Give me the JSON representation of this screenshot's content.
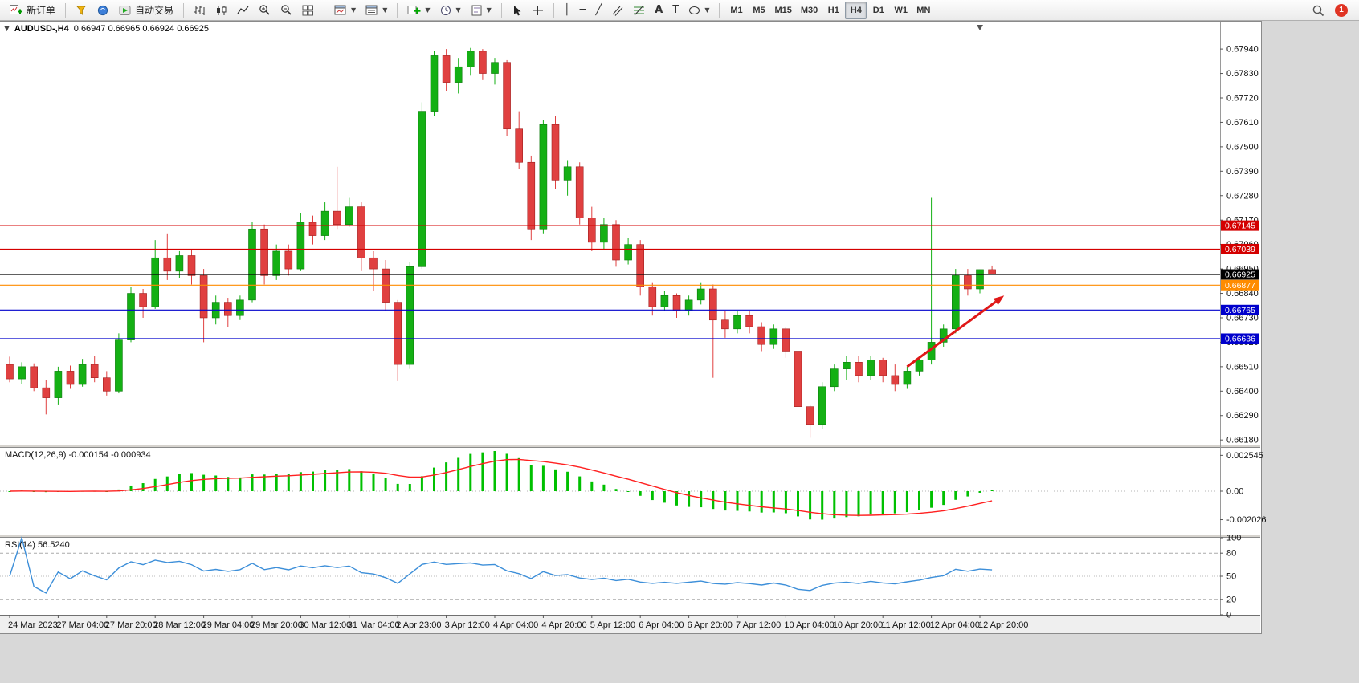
{
  "toolbar": {
    "new_order": {
      "label": "新订单"
    },
    "autotrading": {
      "label": "自动交易"
    },
    "timeframes": {
      "items": [
        "M1",
        "M5",
        "M15",
        "M30",
        "H1",
        "H4",
        "D1",
        "W1",
        "MN"
      ],
      "active": "H4"
    },
    "notification_count": "1"
  },
  "chart_data": {
    "type": "candlestick",
    "symbol": "AUDUSD-,H4",
    "ohlc_display": "0.66947 0.66965 0.66924 0.66925",
    "price_range": {
      "min": 0.66159,
      "max": 0.68056
    },
    "price_ticks": [
      "0.67940",
      "0.67830",
      "0.67720",
      "0.67610",
      "0.67500",
      "0.67390",
      "0.67280",
      "0.67170",
      "0.67060",
      "0.66950",
      "0.66840",
      "0.66730",
      "0.66620",
      "0.66510",
      "0.66400",
      "0.66290",
      "0.66180"
    ],
    "hlines": [
      {
        "price": 0.67145,
        "color": "#d40000",
        "label": "0.67145"
      },
      {
        "price": 0.67039,
        "color": "#d40000",
        "label": "0.67039"
      },
      {
        "price": 0.66925,
        "color": "#000000",
        "label": "0.66925"
      },
      {
        "price": 0.66877,
        "color": "#ff8c00",
        "label": "0.66877"
      },
      {
        "price": 0.66765,
        "color": "#0000cc",
        "label": "0.66765"
      },
      {
        "price": 0.66636,
        "color": "#0000cc",
        "label": "0.66636"
      }
    ],
    "x_labels": [
      {
        "i": 0,
        "t": "24 Mar 2023"
      },
      {
        "i": 4,
        "t": "27 Mar 04:00"
      },
      {
        "i": 8,
        "t": "27 Mar 20:00"
      },
      {
        "i": 12,
        "t": "28 Mar 12:00"
      },
      {
        "i": 16,
        "t": "29 Mar 04:00"
      },
      {
        "i": 20,
        "t": "29 Mar 20:00"
      },
      {
        "i": 24,
        "t": "30 Mar 12:00"
      },
      {
        "i": 28,
        "t": "31 Mar 04:00"
      },
      {
        "i": 32,
        "t": "2 Apr 23:00"
      },
      {
        "i": 36,
        "t": "3 Apr 12:00"
      },
      {
        "i": 40,
        "t": "4 Apr 04:00"
      },
      {
        "i": 44,
        "t": "4 Apr 20:00"
      },
      {
        "i": 48,
        "t": "5 Apr 12:00"
      },
      {
        "i": 52,
        "t": "6 Apr 04:00"
      },
      {
        "i": 56,
        "t": "6 Apr 20:00"
      },
      {
        "i": 60,
        "t": "7 Apr 12:00"
      },
      {
        "i": 64,
        "t": "10 Apr 04:00"
      },
      {
        "i": 68,
        "t": "10 Apr 20:00"
      },
      {
        "i": 72,
        "t": "11 Apr 12:00"
      },
      {
        "i": 76,
        "t": "12 Apr 04:00"
      },
      {
        "i": 80,
        "t": "12 Apr 20:00"
      }
    ],
    "candles": [
      [
        0.6652,
        0.66555,
        0.6644,
        0.66455
      ],
      [
        0.66455,
        0.6653,
        0.6643,
        0.6651
      ],
      [
        0.6651,
        0.66525,
        0.664,
        0.66415
      ],
      [
        0.66415,
        0.6645,
        0.66295,
        0.6637
      ],
      [
        0.6637,
        0.6651,
        0.6634,
        0.6649
      ],
      [
        0.6649,
        0.66515,
        0.6641,
        0.6643
      ],
      [
        0.6643,
        0.66545,
        0.6642,
        0.6652
      ],
      [
        0.6652,
        0.6656,
        0.6644,
        0.6646
      ],
      [
        0.6646,
        0.6649,
        0.6638,
        0.664
      ],
      [
        0.664,
        0.6666,
        0.6639,
        0.6663
      ],
      [
        0.6663,
        0.6687,
        0.6662,
        0.6684
      ],
      [
        0.6684,
        0.6686,
        0.6673,
        0.6678
      ],
      [
        0.6678,
        0.6708,
        0.6677,
        0.67
      ],
      [
        0.67,
        0.6711,
        0.669,
        0.6694
      ],
      [
        0.6694,
        0.6703,
        0.6691,
        0.6701
      ],
      [
        0.6701,
        0.6704,
        0.6688,
        0.6692
      ],
      [
        0.6692,
        0.6695,
        0.6662,
        0.6673
      ],
      [
        0.6673,
        0.6683,
        0.667,
        0.668
      ],
      [
        0.668,
        0.6682,
        0.6669,
        0.6674
      ],
      [
        0.6674,
        0.6683,
        0.6672,
        0.6681
      ],
      [
        0.6681,
        0.6716,
        0.668,
        0.6713
      ],
      [
        0.6713,
        0.6715,
        0.6688,
        0.6692
      ],
      [
        0.6692,
        0.6706,
        0.669,
        0.6703
      ],
      [
        0.6703,
        0.6706,
        0.6692,
        0.6695
      ],
      [
        0.6695,
        0.672,
        0.6694,
        0.6716
      ],
      [
        0.6716,
        0.6719,
        0.6706,
        0.671
      ],
      [
        0.671,
        0.6725,
        0.6708,
        0.6721
      ],
      [
        0.6721,
        0.6741,
        0.6713,
        0.6715
      ],
      [
        0.6715,
        0.6727,
        0.6714,
        0.6723
      ],
      [
        0.6723,
        0.6725,
        0.6694,
        0.67
      ],
      [
        0.67,
        0.6703,
        0.6685,
        0.6695
      ],
      [
        0.6695,
        0.6699,
        0.6676,
        0.668
      ],
      [
        0.668,
        0.6681,
        0.66445,
        0.6652
      ],
      [
        0.6652,
        0.6698,
        0.665,
        0.6696
      ],
      [
        0.6696,
        0.677,
        0.6695,
        0.6766
      ],
      [
        0.6766,
        0.6793,
        0.6764,
        0.6791
      ],
      [
        0.6791,
        0.6794,
        0.6775,
        0.6779
      ],
      [
        0.6779,
        0.679,
        0.6774,
        0.6786
      ],
      [
        0.6786,
        0.67945,
        0.6782,
        0.6793
      ],
      [
        0.6793,
        0.6794,
        0.678,
        0.6783
      ],
      [
        0.6783,
        0.679,
        0.6778,
        0.6788
      ],
      [
        0.6788,
        0.6789,
        0.6755,
        0.6758
      ],
      [
        0.6758,
        0.6766,
        0.674,
        0.6743
      ],
      [
        0.6743,
        0.6746,
        0.6708,
        0.6713
      ],
      [
        0.6713,
        0.6762,
        0.6711,
        0.676
      ],
      [
        0.676,
        0.6764,
        0.6731,
        0.6735
      ],
      [
        0.6735,
        0.6744,
        0.6728,
        0.6741
      ],
      [
        0.6741,
        0.6743,
        0.6715,
        0.6718
      ],
      [
        0.6718,
        0.6723,
        0.6703,
        0.6707
      ],
      [
        0.6707,
        0.6718,
        0.6704,
        0.6715
      ],
      [
        0.6715,
        0.6717,
        0.6696,
        0.6699
      ],
      [
        0.6699,
        0.6709,
        0.6697,
        0.6706
      ],
      [
        0.6706,
        0.6708,
        0.6683,
        0.6687
      ],
      [
        0.6687,
        0.6689,
        0.6674,
        0.6678
      ],
      [
        0.6678,
        0.6685,
        0.6676,
        0.6683
      ],
      [
        0.6683,
        0.6684,
        0.6673,
        0.6676
      ],
      [
        0.6676,
        0.6683,
        0.6674,
        0.6681
      ],
      [
        0.6681,
        0.6689,
        0.6679,
        0.6686
      ],
      [
        0.6686,
        0.6688,
        0.6646,
        0.6672
      ],
      [
        0.6672,
        0.6676,
        0.6664,
        0.6668
      ],
      [
        0.6668,
        0.6676,
        0.6666,
        0.6674
      ],
      [
        0.6674,
        0.6676,
        0.6666,
        0.6669
      ],
      [
        0.6669,
        0.6671,
        0.6658,
        0.6661
      ],
      [
        0.6661,
        0.667,
        0.6659,
        0.6668
      ],
      [
        0.6668,
        0.6669,
        0.6655,
        0.6658
      ],
      [
        0.6658,
        0.666,
        0.6628,
        0.6633
      ],
      [
        0.6633,
        0.6634,
        0.6619,
        0.6625
      ],
      [
        0.6625,
        0.6644,
        0.6623,
        0.6642
      ],
      [
        0.6642,
        0.6652,
        0.664,
        0.665
      ],
      [
        0.665,
        0.6656,
        0.6645,
        0.6653
      ],
      [
        0.6653,
        0.6656,
        0.6644,
        0.6647
      ],
      [
        0.6647,
        0.6656,
        0.6645,
        0.6654
      ],
      [
        0.6654,
        0.6655,
        0.6644,
        0.6647
      ],
      [
        0.6647,
        0.6652,
        0.664,
        0.6643
      ],
      [
        0.6643,
        0.6651,
        0.6641,
        0.6649
      ],
      [
        0.6649,
        0.6656,
        0.6647,
        0.6654
      ],
      [
        0.6654,
        0.6727,
        0.6652,
        0.6662
      ],
      [
        0.6662,
        0.667,
        0.666,
        0.6668
      ],
      [
        0.6668,
        0.6695,
        0.6666,
        0.6692
      ],
      [
        0.6692,
        0.6695,
        0.6683,
        0.6686
      ],
      [
        0.6686,
        0.66947,
        0.6684,
        0.66947
      ],
      [
        0.66947,
        0.66965,
        0.66924,
        0.66925
      ]
    ],
    "arrow": {
      "from_index": 74,
      "from_price": 0.6651,
      "to_index": 82,
      "to_price": 0.6683
    },
    "shift_marker_index": 80,
    "indicators": {
      "macd": {
        "label": "MACD(12,26,9) -0.000154 -0.000934",
        "fast": 12,
        "slow": 26,
        "signal": 9,
        "axis_labels": [
          {
            "value": 0.002545,
            "text": "0.002545"
          },
          {
            "value": 0,
            "text": "0.00"
          },
          {
            "value": -0.002026,
            "text": "-0.002026"
          }
        ]
      },
      "rsi": {
        "label": "RSI(14) 56.5240",
        "period": 14,
        "levels": [
          {
            "value": 100,
            "text": "100",
            "line": "none"
          },
          {
            "value": 80,
            "text": "80",
            "line": "dash"
          },
          {
            "value": 50,
            "text": "50",
            "line": "dot"
          },
          {
            "value": 20,
            "text": "20",
            "line": "dash"
          },
          {
            "value": 0,
            "text": "0",
            "line": "none"
          }
        ]
      }
    },
    "colors": {
      "up": "#14b014",
      "up_border": "#0d7a0d",
      "down": "#e04040",
      "down_border": "#a02020",
      "macd_hist": "#00c000",
      "macd_signal": "#ff2020",
      "rsi_line": "#3d8fd9",
      "arrow": "#e01818",
      "badge_text": "#ffffff"
    }
  }
}
